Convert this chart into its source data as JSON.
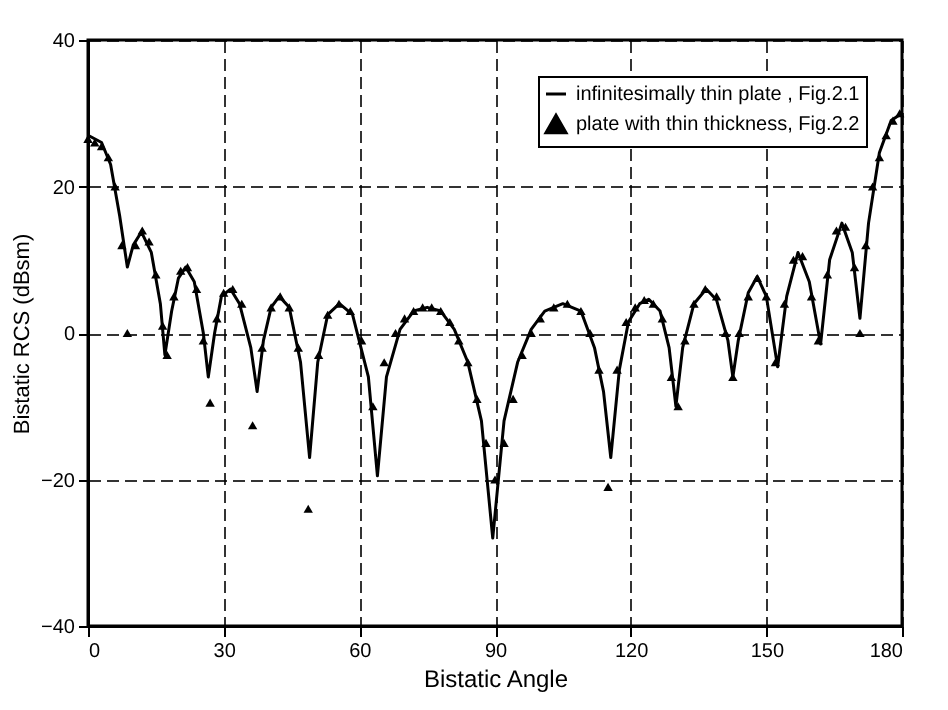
{
  "chart_data": {
    "type": "line",
    "xlabel": "Bistatic Angle",
    "ylabel": "Bistatic RCS (dBsm)",
    "xlim": [
      0,
      180
    ],
    "ylim": [
      -40,
      40
    ],
    "xticks": [
      0,
      30,
      60,
      90,
      120,
      150,
      180
    ],
    "yticks": [
      -40,
      -20,
      0,
      20,
      40
    ],
    "grid": true,
    "legend": "top right",
    "series": [
      {
        "name": "infinitesimally thin plate , Fig.2.1",
        "marker": "none",
        "line_style": "solid",
        "color": "#000000",
        "x": [
          0,
          3,
          5,
          7,
          8.7,
          10,
          11.8,
          14,
          16,
          17,
          18.5,
          20,
          21.6,
          23.5,
          25.5,
          26.6,
          28,
          29.5,
          31.5,
          33.5,
          36,
          37.4,
          38.8,
          40.5,
          42.3,
          44.5,
          47,
          49,
          50.8,
          53,
          55.6,
          58.5,
          62,
          64,
          66,
          69,
          72,
          75,
          78,
          81,
          84,
          87,
          89.5,
          92,
          95,
          98,
          101,
          105,
          109,
          112,
          114,
          115.6,
          117.5,
          119.5,
          122,
          124,
          126.5,
          128.5,
          130,
          131.5,
          134,
          136.7,
          139,
          141.5,
          142.6,
          143.8,
          146,
          148,
          150,
          152.5,
          154.5,
          157,
          159.5,
          162,
          164,
          166.7,
          169,
          170.7,
          172.6,
          175,
          177.6,
          180
        ],
        "values": [
          27,
          26,
          23,
          16,
          9,
          12,
          13.8,
          11,
          4,
          -3,
          3,
          7.5,
          9,
          7,
          0,
          -6,
          0,
          5,
          6,
          4,
          -2,
          -8,
          -1,
          3.5,
          5,
          3.5,
          -4,
          -17,
          -4,
          2.5,
          4,
          2.5,
          -6,
          -19.5,
          -6,
          0.5,
          3,
          3.5,
          3,
          0.5,
          -4,
          -12,
          -28,
          -12,
          -4,
          0.5,
          3,
          4,
          3,
          -2,
          -8,
          -17,
          -5,
          1.5,
          4,
          4.6,
          3,
          -2,
          -10,
          -2,
          4,
          6,
          4.5,
          -1,
          -6,
          -1,
          5.5,
          7.7,
          5,
          -4.6,
          5,
          11,
          7,
          -1.5,
          10,
          15,
          11,
          2,
          15,
          24.6,
          29,
          30
        ]
      },
      {
        "name": "plate with thin thickness, Fig.2.2",
        "type": "scatter",
        "marker": "triangle",
        "color": "#000000",
        "x": [
          0,
          1.5,
          3,
          4.5,
          6,
          7.5,
          8.7,
          10.5,
          12,
          13.5,
          15,
          16.5,
          17.5,
          19,
          20.5,
          22,
          24,
          25.5,
          27,
          28.5,
          30,
          32,
          34,
          36.4,
          38.5,
          40.5,
          42.5,
          44.5,
          46.5,
          48.7,
          51,
          53,
          55.5,
          58,
          60.5,
          63,
          65.5,
          68,
          70,
          72,
          74,
          76,
          78,
          80,
          82,
          84,
          86,
          88,
          90,
          92,
          94,
          96,
          98,
          100,
          103,
          106,
          109,
          111,
          113,
          115,
          117,
          119,
          121,
          123,
          125,
          127,
          129,
          130.5,
          132,
          134,
          136.5,
          139,
          141,
          142.6,
          144,
          146,
          148,
          150,
          152,
          154,
          156,
          158,
          160,
          161.5,
          163.5,
          165.5,
          167.5,
          169.5,
          170.7,
          172,
          173.5,
          175,
          176.5,
          178,
          179.5
        ],
        "values": [
          26.5,
          26,
          25.5,
          24,
          20,
          12,
          0,
          12,
          14,
          12.5,
          8,
          1,
          -3,
          5,
          8.5,
          9,
          6,
          -1,
          -9.5,
          2,
          5.5,
          6,
          4,
          -12.6,
          -2,
          3.5,
          5,
          3.5,
          -2,
          -24,
          -3,
          2.5,
          4,
          3,
          -1,
          -10,
          -4,
          0,
          2,
          3,
          3.5,
          3.5,
          3,
          1.5,
          -1,
          -4,
          -9,
          -15,
          -20,
          -15,
          -9,
          -3,
          0,
          2,
          3.5,
          4,
          3,
          0,
          -5,
          -21,
          -5,
          1.5,
          3.5,
          4.5,
          4,
          2,
          -6,
          -10,
          -1,
          4,
          6,
          5,
          0,
          -6,
          0,
          5,
          7.5,
          5,
          -4,
          4,
          10,
          10.5,
          5,
          -1,
          8,
          14,
          14.5,
          9,
          0,
          12,
          20,
          24,
          27,
          29,
          30
        ]
      }
    ]
  }
}
